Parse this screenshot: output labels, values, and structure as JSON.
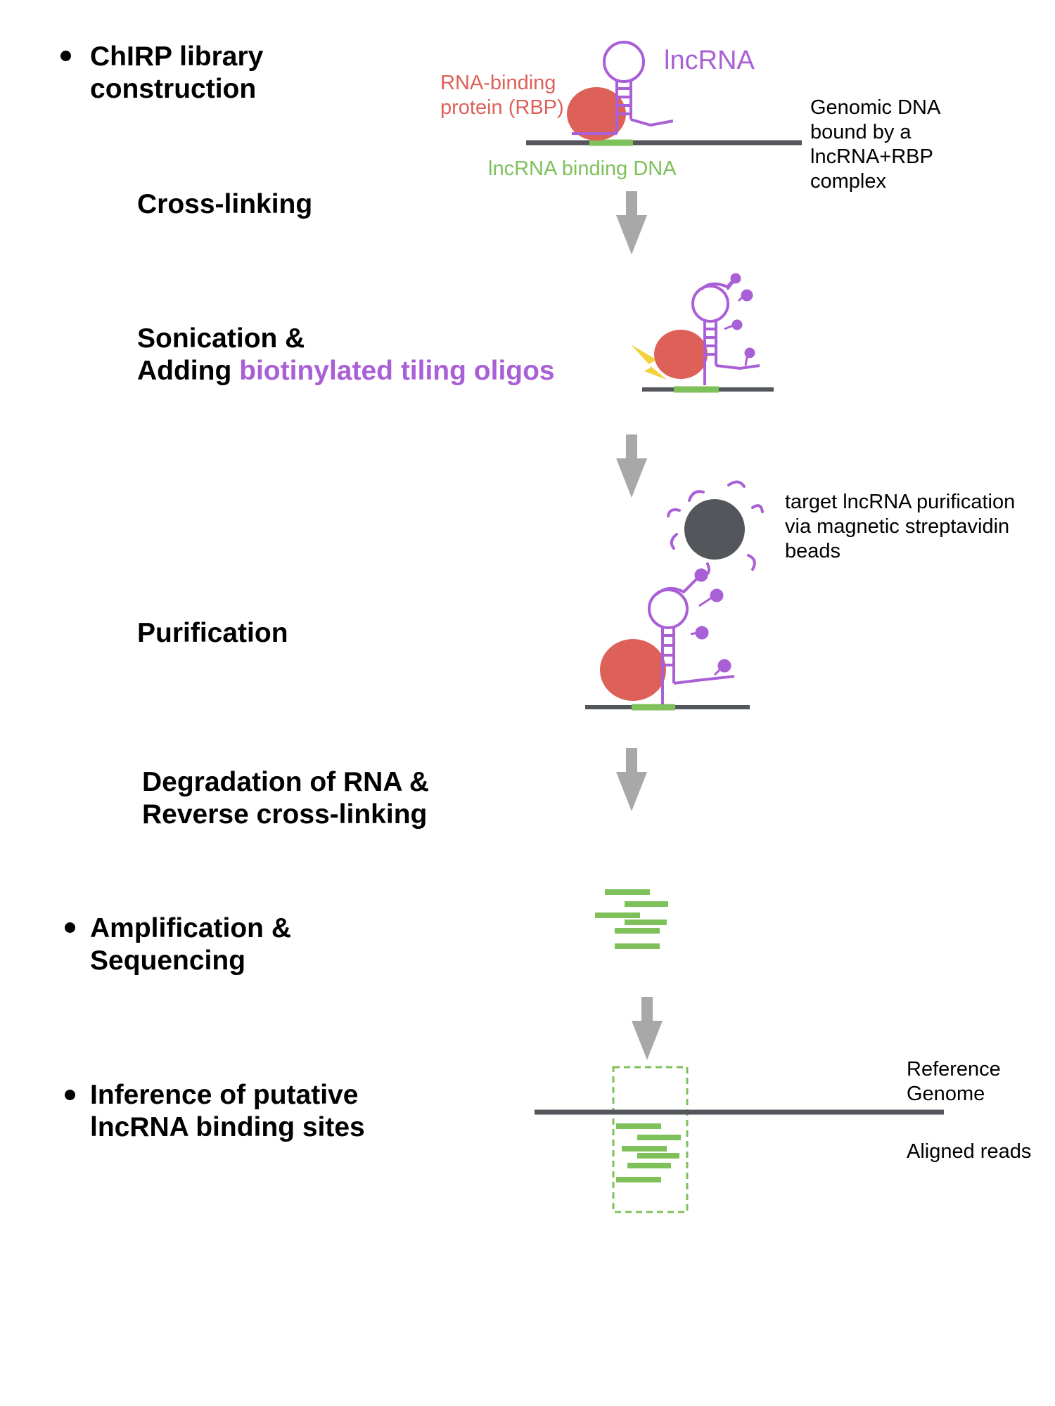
{
  "steps": {
    "library_construction": "ChIRP library\nconstruction",
    "cross_linking": "Cross-linking",
    "sonication_line1": "Sonication &",
    "adding_prefix": "Adding ",
    "adding_oligos": "biotinylated tiling oligos",
    "purification": "Purification",
    "degradation": "Degradation of RNA &\nReverse cross-linking",
    "amplification": "Amplification &\nSequencing",
    "inference": "Inference of putative\nlncRNA binding sites"
  },
  "labels": {
    "lncrna": "lncRNA",
    "rbp": "RNA-binding\nprotein (RBP)",
    "binding_dna": "lncRNA binding DNA",
    "genomic_dna": "Genomic DNA\nbound by a\nlncRNA+RBP\ncomplex",
    "bead_note": "target lncRNA purification\nvia magnetic streptavidin\nbeads",
    "reference_genome": "Reference\nGenome",
    "aligned_reads": "Aligned reads"
  },
  "colors": {
    "rna": "#a95fd6",
    "rbp": "#dd6158",
    "dna_binding": "#7ec15a",
    "genome_line": "#53565b",
    "arrow": "#a8a8a8",
    "bead": "#53565b",
    "sonication_bolt": "#f4d23c"
  }
}
